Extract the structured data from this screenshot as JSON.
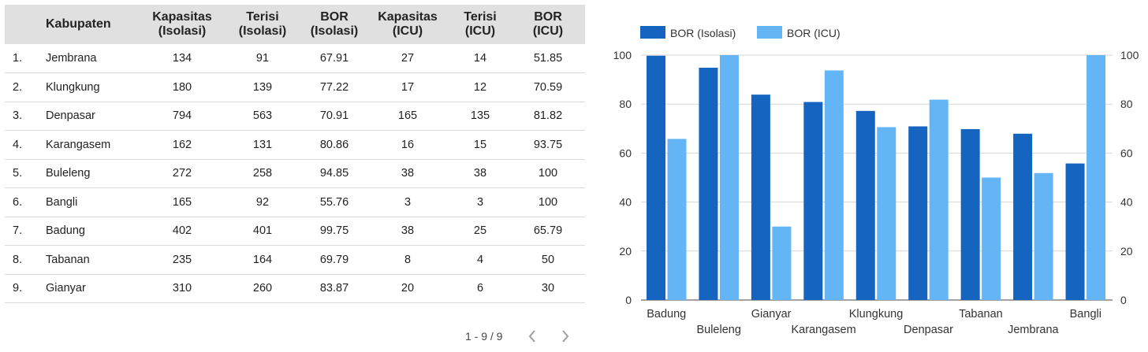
{
  "table": {
    "headers": [
      {
        "line1": "",
        "line2": ""
      },
      {
        "line1": "Kabupaten",
        "line2": ""
      },
      {
        "line1": "Kapasitas",
        "line2": "(Isolasi)"
      },
      {
        "line1": "Terisi",
        "line2": "(Isolasi)"
      },
      {
        "line1": "BOR",
        "line2": "(Isolasi)"
      },
      {
        "line1": "Kapasitas",
        "line2": "(ICU)"
      },
      {
        "line1": "Terisi",
        "line2": "(ICU)"
      },
      {
        "line1": "BOR",
        "line2": "(ICU)"
      }
    ],
    "rows": [
      [
        "1.",
        "Jembrana",
        "134",
        "91",
        "67.91",
        "27",
        "14",
        "51.85"
      ],
      [
        "2.",
        "Klungkung",
        "180",
        "139",
        "77.22",
        "17",
        "12",
        "70.59"
      ],
      [
        "3.",
        "Denpasar",
        "794",
        "563",
        "70.91",
        "165",
        "135",
        "81.82"
      ],
      [
        "4.",
        "Karangasem",
        "162",
        "131",
        "80.86",
        "16",
        "15",
        "93.75"
      ],
      [
        "5.",
        "Buleleng",
        "272",
        "258",
        "94.85",
        "38",
        "38",
        "100"
      ],
      [
        "6.",
        "Bangli",
        "165",
        "92",
        "55.76",
        "3",
        "3",
        "100"
      ],
      [
        "7.",
        "Badung",
        "402",
        "401",
        "99.75",
        "38",
        "25",
        "65.79"
      ],
      [
        "8.",
        "Tabanan",
        "235",
        "164",
        "69.79",
        "8",
        "4",
        "50"
      ],
      [
        "9.",
        "Gianyar",
        "310",
        "260",
        "83.87",
        "20",
        "6",
        "30"
      ]
    ]
  },
  "pagination": {
    "range": "1 - 9 / 9",
    "prev_icon": "chevron-left-icon",
    "next_icon": "chevron-right-icon"
  },
  "chart_data": {
    "type": "bar",
    "categories": [
      "Badung",
      "Buleleng",
      "Gianyar",
      "Karangasem",
      "Klungkung",
      "Denpasar",
      "Tabanan",
      "Jembrana",
      "Bangli"
    ],
    "series": [
      {
        "name": "BOR (Isolasi)",
        "color": "#1565c0",
        "values": [
          99.75,
          94.85,
          83.87,
          80.86,
          77.22,
          70.91,
          69.79,
          67.91,
          55.76
        ]
      },
      {
        "name": "BOR (ICU)",
        "color": "#64b5f6",
        "values": [
          65.79,
          100,
          30,
          93.75,
          70.59,
          81.82,
          50,
          51.85,
          100
        ]
      }
    ],
    "ylim": [
      0,
      100
    ],
    "y_ticks": [
      0,
      20,
      40,
      60,
      80,
      100
    ],
    "y_axis_both_sides": true,
    "grid": true,
    "legend_position": "top-left",
    "xlabel": "",
    "ylabel": ""
  }
}
